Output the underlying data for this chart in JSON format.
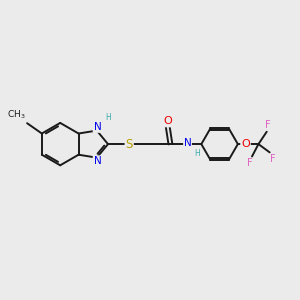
{
  "background_color": "#ebebeb",
  "bond_color": "#1a1a1a",
  "bond_width": 1.4,
  "atom_colors": {
    "N": "#0000ee",
    "S": "#b8a000",
    "O": "#ee0000",
    "F": "#e060c0",
    "C": "#1a1a1a",
    "H": "#3aacaa"
  },
  "font_size": 7.0
}
